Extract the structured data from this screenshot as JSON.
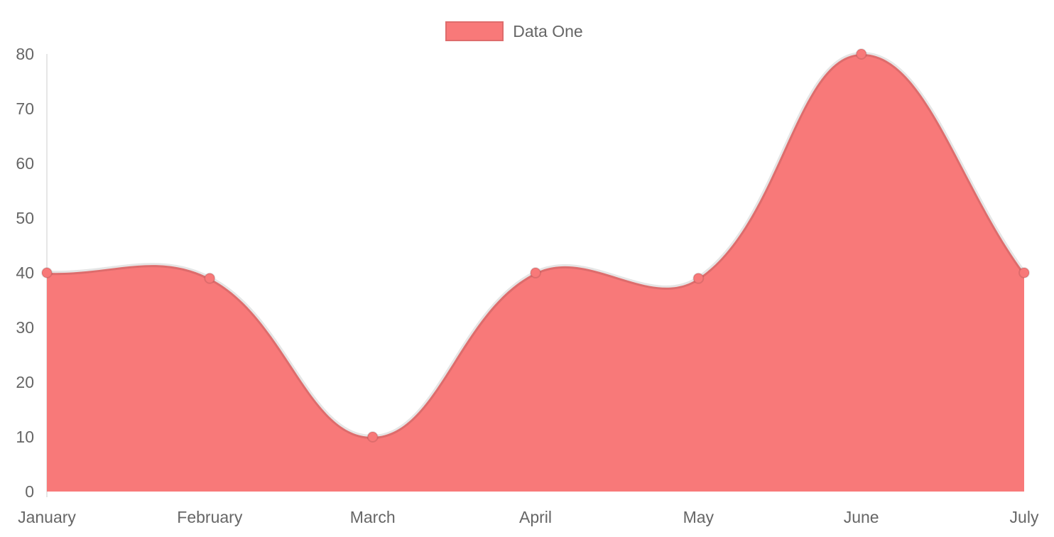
{
  "chart_data": {
    "type": "area",
    "title": "",
    "xlabel": "",
    "ylabel": "",
    "categories": [
      "January",
      "February",
      "March",
      "April",
      "May",
      "June",
      "July"
    ],
    "series": [
      {
        "name": "Data One",
        "values": [
          40,
          39,
          10,
          40,
          39,
          80,
          40
        ]
      }
    ],
    "ylim": [
      0,
      80
    ],
    "yticks": [
      0,
      10,
      20,
      30,
      40,
      50,
      60,
      70,
      80
    ],
    "grid": false,
    "legend_position": "top-center",
    "line_tension": 0.4,
    "colors": {
      "fill": "#f87979",
      "line_stroke": "rgba(0,0,0,0.1)",
      "point_fill": "#f87979",
      "point_border": "rgba(0,0,0,0.1)",
      "axis_line": "#e6e6e6",
      "tick_text": "#666666"
    }
  }
}
